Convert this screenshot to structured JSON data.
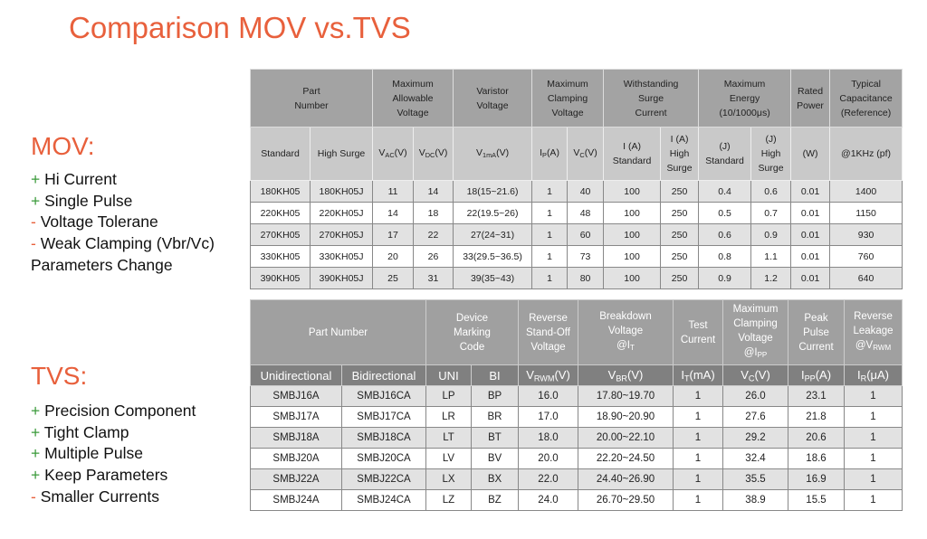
{
  "title": "Comparison MOV vs.TVS",
  "mov": {
    "heading": "MOV:",
    "items": [
      {
        "sign": "+",
        "text": "Hi Current"
      },
      {
        "sign": "+",
        "text": "Single Pulse"
      },
      {
        "sign": "-",
        "text": "Voltage Tolerane"
      },
      {
        "sign": "-",
        "text": "Weak Clamping (Vbr/Vc) Parameters Change"
      }
    ]
  },
  "tvs": {
    "heading": "TVS:",
    "items": [
      {
        "sign": "+",
        "text": "Precision Component"
      },
      {
        "sign": "+",
        "text": "Tight Clamp"
      },
      {
        "sign": "+",
        "text": "Multiple Pulse"
      },
      {
        "sign": "+",
        "text": "Keep Parameters"
      },
      {
        "sign": "-",
        "text": "Smaller Currents"
      }
    ]
  },
  "mov_table": {
    "header": [
      [
        "Part\nNumber",
        "Maximum\nAllowable\nVoltage",
        "Varistor\nVoltage",
        "Maximum\nClamping\nVoltage",
        "Withstanding\nSurge\nCurrent",
        "Maximum\nEnergy\n(10/1000μs)",
        "Rated\nPower",
        "Typical\nCapacitance\n(Reference)"
      ],
      [
        "Standard",
        "High Surge",
        [
          "V",
          "AC",
          "(V)"
        ],
        [
          "V",
          "DC",
          "(V)"
        ],
        [
          "V",
          "1mA",
          "(V)"
        ],
        [
          "I",
          "P",
          "(A)"
        ],
        [
          "V",
          "C",
          "(V)"
        ],
        "I (A)\nStandard",
        "I (A)\nHigh\nSurge",
        "(J)\nStandard",
        "(J)\nHigh\nSurge",
        "(W)",
        "@1KHz (pf)"
      ]
    ],
    "rows": [
      [
        "180KH05",
        "180KH05J",
        "11",
        "14",
        "18(15~21.6)",
        "1",
        "40",
        "100",
        "250",
        "0.4",
        "0.6",
        "0.01",
        "1400"
      ],
      [
        "220KH05",
        "220KH05J",
        "14",
        "18",
        "22(19.5~26)",
        "1",
        "48",
        "100",
        "250",
        "0.5",
        "0.7",
        "0.01",
        "1150"
      ],
      [
        "270KH05",
        "270KH05J",
        "17",
        "22",
        "27(24~31)",
        "1",
        "60",
        "100",
        "250",
        "0.6",
        "0.9",
        "0.01",
        "930"
      ],
      [
        "330KH05",
        "330KH05J",
        "20",
        "26",
        "33(29.5~36.5)",
        "1",
        "73",
        "100",
        "250",
        "0.8",
        "1.1",
        "0.01",
        "760"
      ],
      [
        "390KH05",
        "390KH05J",
        "25",
        "31",
        "39(35~43)",
        "1",
        "80",
        "100",
        "250",
        "0.9",
        "1.2",
        "0.01",
        "640"
      ]
    ]
  },
  "tvs_table": {
    "header": [
      [
        "Part Number",
        "Device\nMarking\nCode",
        "Reverse\nStand-Off\nVoltage",
        [
          "Breakdown\nVoltage\n@I",
          "T"
        ],
        "Test\nCurrent",
        [
          "Maximum\nClamping\nVoltage\n@I",
          "PP"
        ],
        "Peak\nPulse\nCurrent",
        [
          "Reverse\nLeakage\n@V",
          "RWM"
        ]
      ],
      [
        "Unidirectional",
        "Bidirectional",
        "UNI",
        "BI",
        [
          "V",
          "RWM",
          "(V)"
        ],
        [
          "V",
          "BR",
          "(V)"
        ],
        [
          "I",
          "T",
          "(mA)"
        ],
        [
          "V",
          "C",
          "(V)"
        ],
        [
          "I",
          "PP",
          "(A)"
        ],
        [
          "I",
          "R",
          "(μA)"
        ]
      ]
    ],
    "rows": [
      [
        "SMBJ16A",
        "SMBJ16CA",
        "LP",
        "BP",
        "16.0",
        "17.80~19.70",
        "1",
        "26.0",
        "23.1",
        "1"
      ],
      [
        "SMBJ17A",
        "SMBJ17CA",
        "LR",
        "BR",
        "17.0",
        "18.90~20.90",
        "1",
        "27.6",
        "21.8",
        "1"
      ],
      [
        "SMBJ18A",
        "SMBJ18CA",
        "LT",
        "BT",
        "18.0",
        "20.00~22.10",
        "1",
        "29.2",
        "20.6",
        "1"
      ],
      [
        "SMBJ20A",
        "SMBJ20CA",
        "LV",
        "BV",
        "20.0",
        "22.20~24.50",
        "1",
        "32.4",
        "18.6",
        "1"
      ],
      [
        "SMBJ22A",
        "SMBJ22CA",
        "LX",
        "BX",
        "22.0",
        "24.40~26.90",
        "1",
        "35.5",
        "16.9",
        "1"
      ],
      [
        "SMBJ24A",
        "SMBJ24CA",
        "LZ",
        "BZ",
        "24.0",
        "26.70~29.50",
        "1",
        "38.9",
        "15.5",
        "1"
      ]
    ]
  }
}
